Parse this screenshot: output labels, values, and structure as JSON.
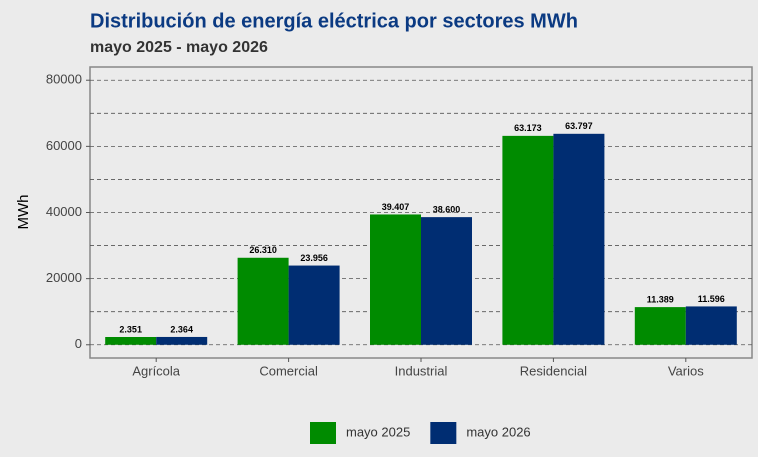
{
  "chart_data": {
    "type": "bar",
    "title": "Distribución de energía eléctrica por sectores MWh",
    "subtitle": "mayo 2025 - mayo 2026",
    "y_label": "MWh",
    "categories": [
      "Agrícola",
      "Comercial",
      "Industrial",
      "Residencial",
      "Varios"
    ],
    "series": [
      {
        "name": "mayo 2025",
        "color": "#008b00",
        "values": [
          2351,
          26310,
          39407,
          63173,
          11389
        ],
        "value_labels": [
          "2.351",
          "26.310",
          "39.407",
          "63.173",
          "11.389"
        ]
      },
      {
        "name": "mayo 2026",
        "color": "#002d72",
        "values": [
          2364,
          23956,
          38600,
          63797,
          11596
        ],
        "value_labels": [
          "2.364",
          "23.956",
          "38.600",
          "63.797",
          "11.596"
        ]
      }
    ],
    "ylim": [
      -4000,
      84000
    ],
    "yticks": [
      0,
      20000,
      40000,
      60000,
      80000
    ],
    "minor_yticks": [
      10000,
      30000,
      50000,
      70000
    ],
    "grid": true,
    "legend": "bottom"
  }
}
